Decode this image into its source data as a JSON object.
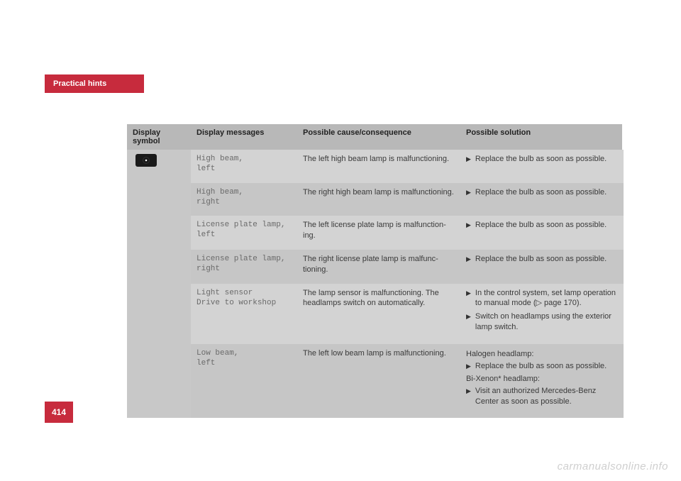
{
  "tab_title": "Practical hints",
  "page_number": "414",
  "watermark": "carmanualsonline.info",
  "headers": {
    "symbol": "Display symbol",
    "messages": "Display messages",
    "cause": "Possible cause/consequence",
    "solution": "Possible solution"
  },
  "rows": [
    {
      "msg_line1": "High beam,",
      "msg_line2": "left",
      "cause": "The left high beam lamp is malfunction­ing.",
      "solutions": [
        {
          "type": "bullet",
          "text": "Replace the bulb as soon as possible."
        }
      ]
    },
    {
      "msg_line1": "High beam,",
      "msg_line2": "right",
      "cause": "The right high beam lamp is malfunction­ing.",
      "solutions": [
        {
          "type": "bullet",
          "text": "Replace the bulb as soon as possible."
        }
      ]
    },
    {
      "msg_line1": "License plate lamp,",
      "msg_line2": "left",
      "cause": "The left license plate lamp is malfunction­ing.",
      "solutions": [
        {
          "type": "bullet",
          "text": "Replace the bulb as soon as possible."
        }
      ]
    },
    {
      "msg_line1": "License plate lamp,",
      "msg_line2": "right",
      "cause": "The right license plate lamp is malfunc­tioning.",
      "solutions": [
        {
          "type": "bullet",
          "text": "Replace the bulb as soon as possible."
        }
      ]
    },
    {
      "msg_line1": "Light sensor",
      "msg_line2": "Drive to workshop",
      "cause": "The lamp sensor is malfunctioning. The headlamps switch on automatically.",
      "solutions": [
        {
          "type": "bullet",
          "text": "In the control system, set lamp opera­tion to manual mode (▷ page 170)."
        },
        {
          "type": "bullet",
          "text": "Switch on headlamps using the exteri­or lamp switch."
        }
      ]
    },
    {
      "msg_line1": "Low beam,",
      "msg_line2": "left",
      "cause": "The left low beam lamp is malfunctioning.",
      "solutions": [
        {
          "type": "label",
          "text": "Halogen headlamp:"
        },
        {
          "type": "bullet",
          "text": "Replace the bulb as soon as possible."
        },
        {
          "type": "label",
          "text": "Bi-Xenon* headlamp:"
        },
        {
          "type": "bullet",
          "text": "Visit an authorized Mercedes-Benz Center as soon as possible."
        }
      ]
    }
  ]
}
